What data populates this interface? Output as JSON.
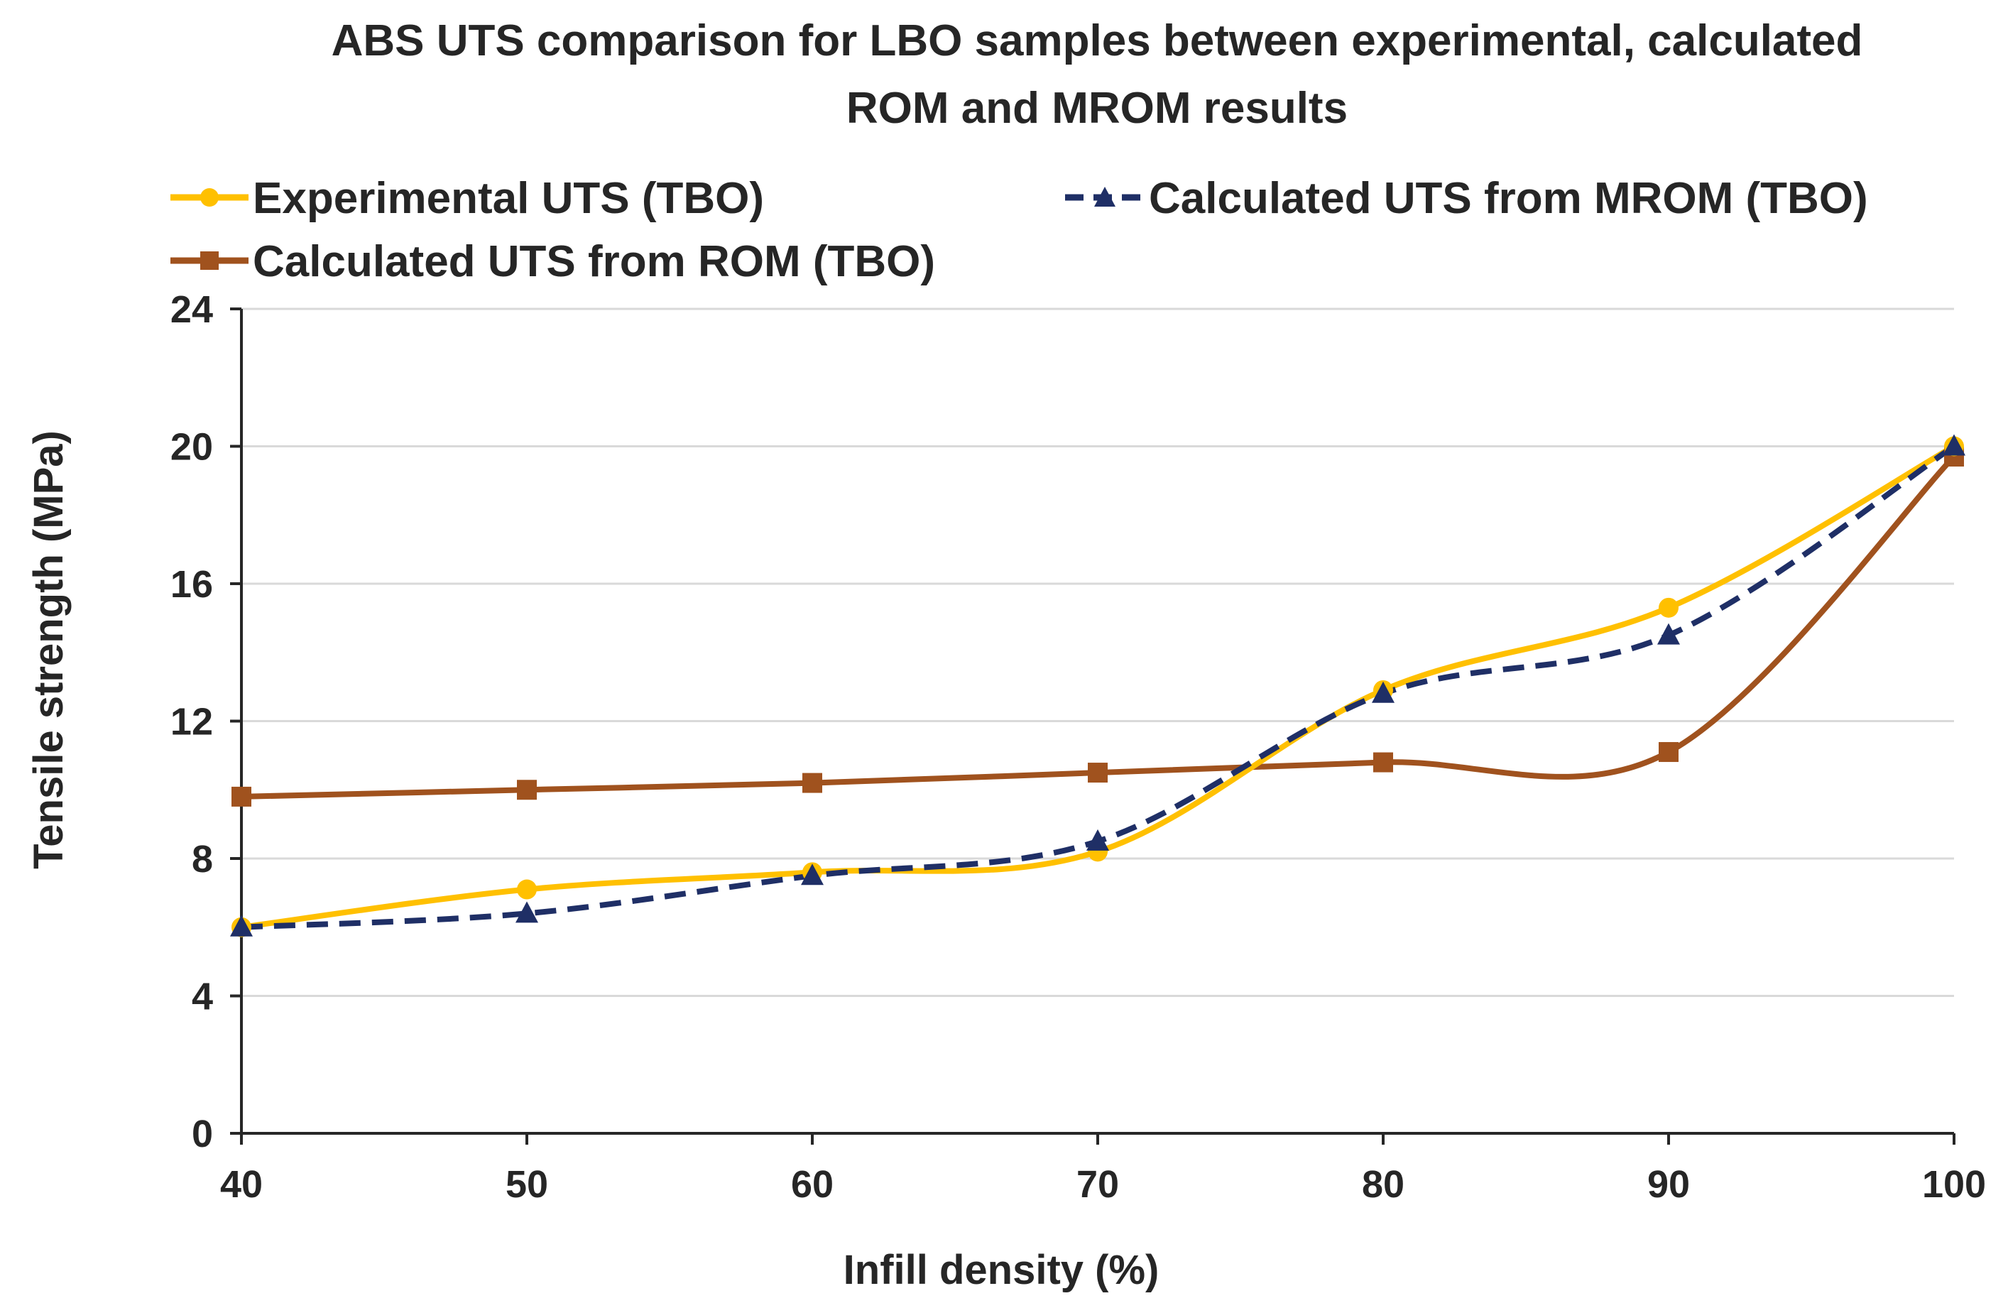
{
  "chart_data": {
    "type": "line",
    "title_lines": [
      "ABS UTS comparison for LBO samples between experimental, calculated",
      "ROM and MROM results"
    ],
    "xlabel": "Infill density (%)",
    "ylabel": "Tensile strength (MPa)",
    "x": [
      40,
      50,
      60,
      70,
      80,
      90,
      100
    ],
    "x_tick_labels": [
      "40",
      "50",
      "60",
      "70",
      "80",
      "90",
      "100"
    ],
    "xlim": [
      40,
      100
    ],
    "ylim": [
      0,
      24
    ],
    "y_ticks": [
      0,
      4,
      8,
      12,
      16,
      20,
      24
    ],
    "y_tick_labels": [
      "0",
      "4",
      "8",
      "12",
      "16",
      "20",
      "24"
    ],
    "grid": "horizontal",
    "legend_position": "top",
    "series": [
      {
        "name": "Experimental UTS (TBO)",
        "values": [
          6.0,
          7.1,
          7.6,
          8.2,
          12.9,
          15.3,
          20.0
        ],
        "color": "#FFC000",
        "marker": "circle",
        "dash": "solid",
        "legend_label": "Experimental UTS (TBO)"
      },
      {
        "name": "Calculated UTS from MROM (TBO)",
        "values": [
          6.0,
          6.4,
          7.5,
          8.5,
          12.8,
          14.5,
          20.0
        ],
        "color": "#1F2F66",
        "marker": "triangle",
        "dash": "dashed",
        "legend_label": "Calculated UTS from MROM (TBO)"
      },
      {
        "name": "Calculated UTS from ROM (TBO)",
        "values": [
          9.8,
          10.0,
          10.2,
          10.5,
          10.8,
          11.1,
          19.7
        ],
        "color": "#A0521E",
        "marker": "square",
        "dash": "solid",
        "legend_label": "Calculated UTS from ROM (TBO)"
      }
    ]
  }
}
